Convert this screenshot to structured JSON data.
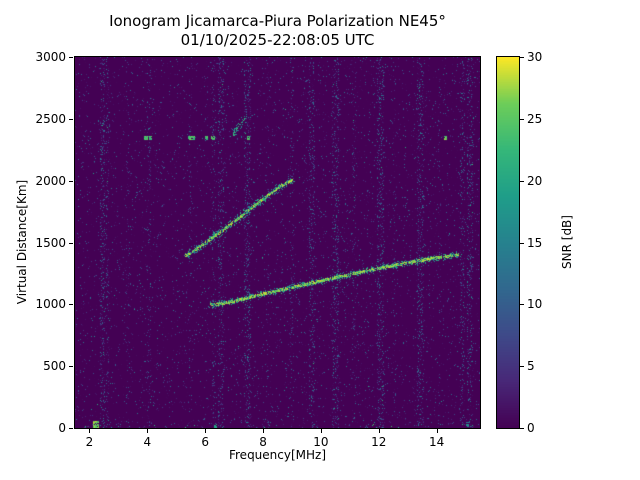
{
  "chart_data": {
    "type": "heatmap",
    "title": "Ionogram Jicamarca-Piura Polarization NE45°",
    "subtitle": "01/10/2025-22:08:05 UTC",
    "xlabel": "Frequency[MHz]",
    "ylabel": "Virtual Distance[Km]",
    "xlim": [
      1.5,
      15.5
    ],
    "ylim": [
      0,
      3000
    ],
    "xticks": [
      2,
      4,
      6,
      8,
      10,
      12,
      14
    ],
    "yticks": [
      0,
      500,
      1000,
      1500,
      2000,
      2500,
      3000
    ],
    "grid": false,
    "colorbar": {
      "label": "SNR [dB]",
      "ticks": [
        0,
        5,
        10,
        15,
        20,
        25,
        30
      ],
      "vmin": 0,
      "vmax": 30,
      "position": "right"
    },
    "colormap": {
      "name": "viridis",
      "stops": [
        [
          0.0,
          68,
          1,
          84
        ],
        [
          0.125,
          72,
          40,
          120
        ],
        [
          0.25,
          62,
          74,
          137
        ],
        [
          0.375,
          49,
          104,
          142
        ],
        [
          0.5,
          38,
          130,
          142
        ],
        [
          0.625,
          31,
          158,
          137
        ],
        [
          0.75,
          53,
          183,
          121
        ],
        [
          0.875,
          109,
          205,
          89
        ],
        [
          1.0,
          253,
          231,
          37
        ]
      ]
    },
    "background_snr": 0,
    "noise": {
      "seed": 7,
      "base_density": 0.05,
      "base_max": 0.45,
      "bottom_row_density": 0.12,
      "columns": [
        {
          "f": 2.45,
          "w": 0.1,
          "d": 0.3,
          "m": 0.55
        },
        {
          "f": 2.62,
          "w": 0.06,
          "d": 0.22,
          "m": 0.5
        },
        {
          "f": 3.3,
          "w": 0.05,
          "d": 0.12,
          "m": 0.4
        },
        {
          "f": 4.05,
          "w": 0.06,
          "d": 0.15,
          "m": 0.45
        },
        {
          "f": 5.5,
          "w": 0.05,
          "d": 0.14,
          "m": 0.45
        },
        {
          "f": 6.3,
          "w": 0.06,
          "d": 0.18,
          "m": 0.5
        },
        {
          "f": 6.55,
          "w": 0.1,
          "d": 0.25,
          "m": 0.5
        },
        {
          "f": 7.45,
          "w": 0.12,
          "d": 0.28,
          "m": 0.55
        },
        {
          "f": 8.15,
          "w": 0.05,
          "d": 0.12,
          "m": 0.4
        },
        {
          "f": 9.0,
          "w": 0.06,
          "d": 0.15,
          "m": 0.45
        },
        {
          "f": 9.7,
          "w": 0.1,
          "d": 0.25,
          "m": 0.5
        },
        {
          "f": 10.5,
          "w": 0.12,
          "d": 0.28,
          "m": 0.5
        },
        {
          "f": 11.15,
          "w": 0.06,
          "d": 0.15,
          "m": 0.45
        },
        {
          "f": 12.05,
          "w": 0.12,
          "d": 0.28,
          "m": 0.5
        },
        {
          "f": 12.55,
          "w": 0.06,
          "d": 0.15,
          "m": 0.4
        },
        {
          "f": 13.45,
          "w": 0.12,
          "d": 0.28,
          "m": 0.5
        },
        {
          "f": 14.1,
          "w": 0.05,
          "d": 0.12,
          "m": 0.4
        },
        {
          "f": 14.9,
          "w": 0.08,
          "d": 0.2,
          "m": 0.5
        },
        {
          "f": 15.15,
          "w": 0.1,
          "d": 0.25,
          "m": 0.55
        }
      ]
    },
    "traces": [
      {
        "name": "f-trace-first-hop",
        "snr": 29,
        "core": 1,
        "gap": 0.05,
        "points": [
          [
            6.15,
            1000
          ],
          [
            6.5,
            1008
          ],
          [
            7.0,
            1030
          ],
          [
            7.5,
            1058
          ],
          [
            8.0,
            1088
          ],
          [
            8.5,
            1115
          ],
          [
            9.0,
            1142
          ],
          [
            9.5,
            1168
          ],
          [
            10.0,
            1194
          ],
          [
            10.5,
            1220
          ],
          [
            11.0,
            1246
          ],
          [
            11.5,
            1272
          ],
          [
            12.0,
            1296
          ],
          [
            12.5,
            1318
          ],
          [
            13.0,
            1340
          ],
          [
            13.5,
            1361
          ],
          [
            14.0,
            1380
          ],
          [
            14.4,
            1394
          ],
          [
            14.75,
            1408
          ]
        ]
      },
      {
        "name": "f-trace-second-hop",
        "snr": 29,
        "core": 1,
        "gap": 0.1,
        "points": [
          [
            5.3,
            1395
          ],
          [
            5.6,
            1438
          ],
          [
            5.9,
            1485
          ],
          [
            6.2,
            1535
          ],
          [
            6.5,
            1585
          ],
          [
            6.8,
            1638
          ],
          [
            7.1,
            1692
          ],
          [
            7.4,
            1748
          ],
          [
            7.7,
            1805
          ],
          [
            8.0,
            1860
          ],
          [
            8.3,
            1912
          ],
          [
            8.6,
            1958
          ],
          [
            8.85,
            1990
          ],
          [
            9.0,
            2005
          ]
        ]
      },
      {
        "name": "upper-streak",
        "snr": 24,
        "core": 0,
        "gap": 0.25,
        "points": [
          [
            6.95,
            2380
          ],
          [
            7.15,
            2440
          ],
          [
            7.35,
            2505
          ]
        ]
      }
    ],
    "spots": [
      {
        "f": 2.2,
        "km": 25,
        "w": 0.18,
        "h": 60,
        "snr": 29
      },
      {
        "f": 6.35,
        "km": 15,
        "w": 0.1,
        "h": 30,
        "snr": 22
      },
      {
        "f": 15.05,
        "km": 25,
        "w": 0.1,
        "h": 40,
        "snr": 18
      },
      {
        "f": 3.95,
        "km": 2350,
        "w": 0.12,
        "h": 25,
        "snr": 27
      },
      {
        "f": 4.1,
        "km": 2350,
        "w": 0.1,
        "h": 25,
        "snr": 27
      },
      {
        "f": 5.45,
        "km": 2350,
        "w": 0.12,
        "h": 25,
        "snr": 27
      },
      {
        "f": 5.6,
        "km": 2350,
        "w": 0.1,
        "h": 25,
        "snr": 27
      },
      {
        "f": 6.05,
        "km": 2350,
        "w": 0.1,
        "h": 25,
        "snr": 26
      },
      {
        "f": 6.25,
        "km": 2350,
        "w": 0.12,
        "h": 25,
        "snr": 27
      },
      {
        "f": 7.5,
        "km": 2350,
        "w": 0.1,
        "h": 25,
        "snr": 26
      },
      {
        "f": 14.3,
        "km": 2350,
        "w": 0.1,
        "h": 28,
        "snr": 28
      }
    ]
  }
}
